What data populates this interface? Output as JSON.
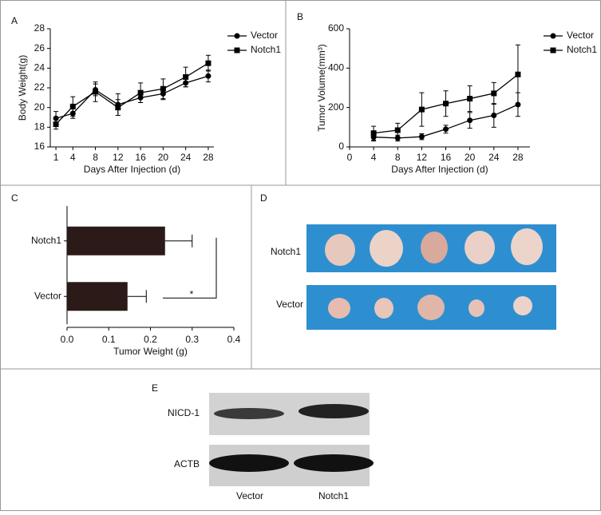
{
  "chart_data": [
    {
      "type": "line",
      "panel": "A",
      "xlabel": "Days After Injection (d)",
      "ylabel": "Body Weight(g)",
      "x": [
        1,
        4,
        8,
        12,
        16,
        20,
        24,
        28
      ],
      "series": [
        {
          "name": "Vector",
          "color": "#000000",
          "marker": "circle",
          "values": [
            18.9,
            19.4,
            21.8,
            20.3,
            21.0,
            21.4,
            22.5,
            23.2
          ],
          "errors": [
            0.7,
            0.5,
            0.6,
            1.1,
            0.5,
            0.6,
            0.4,
            0.6
          ]
        },
        {
          "name": "Notch1",
          "color": "#000000",
          "marker": "square",
          "values": [
            18.3,
            20.1,
            21.6,
            20.0,
            21.5,
            21.9,
            23.1,
            24.5
          ],
          "errors": [
            0.5,
            1.0,
            1.0,
            0.8,
            1.0,
            1.0,
            1.0,
            0.8
          ]
        }
      ],
      "xlim": [
        0,
        29
      ],
      "xticks": [
        1,
        4,
        8,
        12,
        16,
        20,
        24,
        28
      ],
      "ylim": [
        16,
        28
      ],
      "yticks": [
        16,
        18,
        20,
        22,
        24,
        26,
        28
      ],
      "legend": "upper right"
    },
    {
      "type": "line",
      "panel": "B",
      "xlabel": "Days After Injection (d)",
      "ylabel": "Tumor Volume(mm³)",
      "x": [
        4,
        8,
        12,
        16,
        20,
        24,
        28
      ],
      "series": [
        {
          "name": "Vector",
          "color": "#000000",
          "marker": "circle",
          "values": [
            50,
            45,
            52,
            90,
            135,
            160,
            215
          ],
          "errors": [
            20,
            15,
            15,
            20,
            40,
            60,
            60
          ]
        },
        {
          "name": "Notch1",
          "color": "#000000",
          "marker": "square",
          "values": [
            70,
            85,
            190,
            220,
            245,
            272,
            368
          ],
          "errors": [
            35,
            35,
            85,
            65,
            65,
            55,
            150
          ]
        }
      ],
      "xlim": [
        0,
        30
      ],
      "xticks": [
        0,
        4,
        8,
        12,
        16,
        20,
        24,
        28
      ],
      "ylim": [
        0,
        600
      ],
      "yticks": [
        0,
        200,
        400,
        600
      ],
      "legend": "upper right"
    },
    {
      "type": "hbar",
      "panel": "C",
      "xlabel": "Tumor Weight (g)",
      "categories": [
        "Notch1",
        "Vector"
      ],
      "values": [
        0.235,
        0.145
      ],
      "errors": [
        0.065,
        0.045
      ],
      "color": "#2b1a17",
      "xlim": [
        0,
        0.4
      ],
      "xticks": [
        {
          "value": 0,
          "label": "0.0"
        },
        0.1,
        0.2,
        0.3,
        0.4
      ],
      "significance": "*"
    }
  ],
  "photo": {
    "panel": "D",
    "rows": [
      "Notch1",
      "Vector"
    ]
  },
  "blot": {
    "panel": "E",
    "bands": [
      "NICD-1",
      "ACTB"
    ],
    "lanes": [
      "Vector",
      "Notch1"
    ]
  }
}
